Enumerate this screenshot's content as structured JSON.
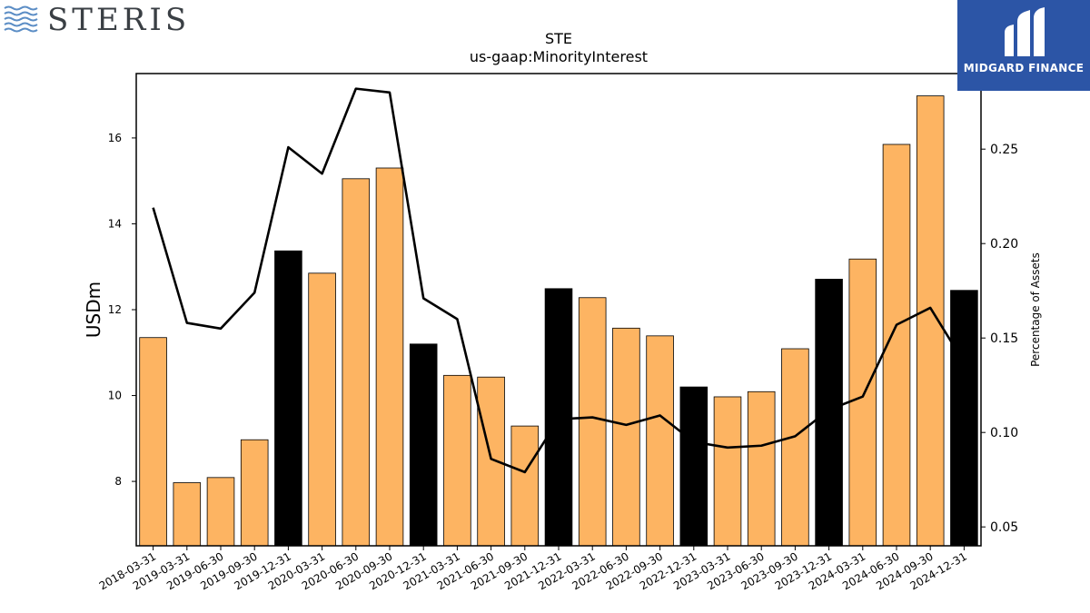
{
  "branding": {
    "company_logo_text": "STERIS",
    "publisher_name": "MIDGARD FINANCE"
  },
  "colors": {
    "bar_default": "#FDB462",
    "bar_q4": "#000000",
    "line": "#000000"
  },
  "chart_data": {
    "type": "bar",
    "title": "STE",
    "subtitle": "us-gaap:MinorityInterest",
    "ylabel": "USDm",
    "y2label": "Percentage of Assets",
    "ylim": [
      6.5,
      17.5
    ],
    "y2lim": [
      0.04,
      0.29
    ],
    "yticks": [
      8,
      10,
      12,
      14,
      16
    ],
    "y2ticks": [
      0.05,
      0.1,
      0.15,
      0.2,
      0.25
    ],
    "y2tick_labels": [
      "0.05",
      "0.10",
      "0.15",
      "0.20",
      "0.25"
    ],
    "categories": [
      "2018-03-31",
      "2019-03-31",
      "2019-06-30",
      "2019-09-30",
      "2019-12-31",
      "2020-03-31",
      "2020-06-30",
      "2020-09-30",
      "2020-12-31",
      "2021-03-31",
      "2021-06-30",
      "2021-09-30",
      "2021-12-31",
      "2022-03-31",
      "2022-06-30",
      "2022-09-30",
      "2022-12-31",
      "2023-03-31",
      "2023-06-30",
      "2023-09-30",
      "2023-12-31",
      "2024-03-31",
      "2024-06-30",
      "2024-09-30",
      "2024-12-31"
    ],
    "series": [
      {
        "axis": "left",
        "kind": "bar",
        "values": [
          11.35,
          7.97,
          8.09,
          8.97,
          13.37,
          12.85,
          15.05,
          15.3,
          11.2,
          10.47,
          10.43,
          9.29,
          12.49,
          12.28,
          11.57,
          11.39,
          10.2,
          9.97,
          10.09,
          11.09,
          12.71,
          13.18,
          15.85,
          16.98,
          12.45
        ],
        "highlighted": [
          false,
          false,
          false,
          false,
          true,
          false,
          false,
          false,
          true,
          false,
          false,
          false,
          true,
          false,
          false,
          false,
          true,
          false,
          false,
          false,
          true,
          false,
          false,
          false,
          true
        ]
      },
      {
        "axis": "right",
        "kind": "line",
        "values": [
          0.219,
          0.158,
          0.155,
          0.174,
          0.251,
          0.237,
          0.282,
          0.28,
          0.171,
          0.16,
          0.086,
          0.079,
          0.107,
          0.108,
          0.104,
          0.109,
          0.095,
          0.092,
          0.093,
          0.098,
          0.112,
          0.119,
          0.157,
          0.166,
          0.137
        ]
      }
    ],
    "grid": false,
    "legend": "none"
  }
}
